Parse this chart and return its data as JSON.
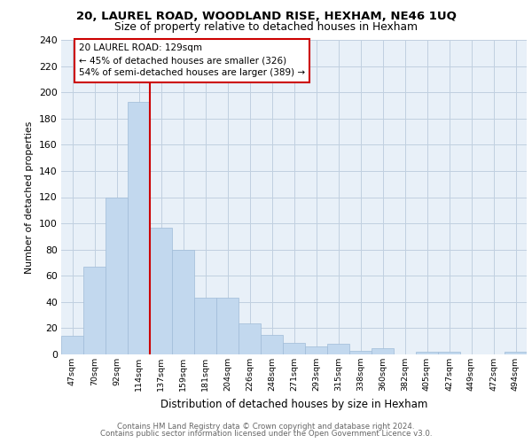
{
  "title1": "20, LAUREL ROAD, WOODLAND RISE, HEXHAM, NE46 1UQ",
  "title2": "Size of property relative to detached houses in Hexham",
  "xlabel": "Distribution of detached houses by size in Hexham",
  "ylabel": "Number of detached properties",
  "categories": [
    "47sqm",
    "70sqm",
    "92sqm",
    "114sqm",
    "137sqm",
    "159sqm",
    "181sqm",
    "204sqm",
    "226sqm",
    "248sqm",
    "271sqm",
    "293sqm",
    "315sqm",
    "338sqm",
    "360sqm",
    "382sqm",
    "405sqm",
    "427sqm",
    "449sqm",
    "472sqm",
    "494sqm"
  ],
  "values": [
    14,
    67,
    120,
    193,
    97,
    80,
    43,
    43,
    24,
    15,
    9,
    6,
    8,
    3,
    5,
    0,
    2,
    2,
    0,
    0,
    2
  ],
  "bar_color": "#c2d8ee",
  "bar_edge_color": "#a0bcd8",
  "annotation_line_index": 3.5,
  "annotation_box_text": "20 LAUREL ROAD: 129sqm\n← 45% of detached houses are smaller (326)\n54% of semi-detached houses are larger (389) →",
  "annotation_box_color": "white",
  "annotation_box_edge_color": "#cc0000",
  "annotation_line_color": "#cc0000",
  "ylim": [
    0,
    240
  ],
  "yticks": [
    0,
    20,
    40,
    60,
    80,
    100,
    120,
    140,
    160,
    180,
    200,
    220,
    240
  ],
  "grid_color": "#c0d0e0",
  "background_color": "#e8f0f8",
  "footer1": "Contains HM Land Registry data © Crown copyright and database right 2024.",
  "footer2": "Contains public sector information licensed under the Open Government Licence v3.0."
}
